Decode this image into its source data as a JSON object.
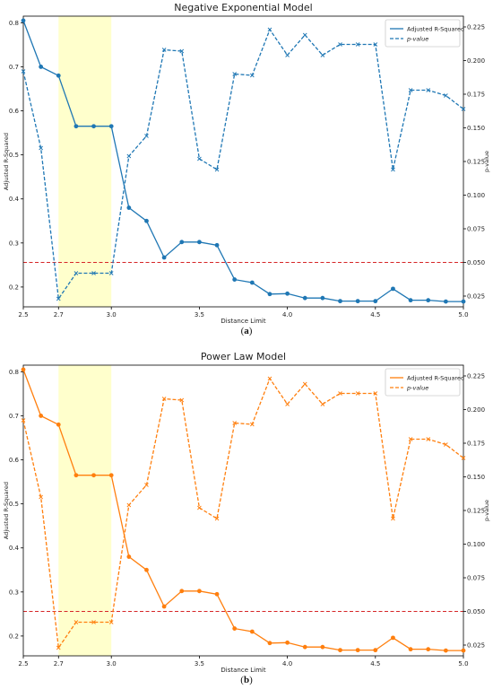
{
  "chart_data": [
    {
      "type": "line",
      "title": "Negative Exponential Model",
      "xlabel": "Distance Limit",
      "ylabel": "Adjusted R-Squared",
      "y2label": "p-value",
      "xlim": [
        2.5,
        5.0
      ],
      "ylim": [
        0.155,
        0.815
      ],
      "y2lim": [
        0.017,
        0.233
      ],
      "xticks": [
        "2.5",
        "2.7",
        "3.0",
        "3.5",
        "4.0",
        "4.5",
        "5.0"
      ],
      "yticks": [
        "0.2",
        "0.3",
        "0.4",
        "0.5",
        "0.6",
        "0.7",
        "0.8"
      ],
      "y2ticks": [
        "0.025",
        "0.050",
        "0.075",
        "0.100",
        "0.125",
        "0.150",
        "0.175",
        "0.200",
        "0.225"
      ],
      "color": "#1f77b4",
      "threshold": 0.05,
      "threshold_color": "#d62728",
      "highlight": [
        2.7,
        3.0
      ],
      "highlight_color": "#ffffcc",
      "legend": [
        "Adjusted R-Squared",
        "p-value"
      ],
      "x": [
        2.5,
        2.6,
        2.7,
        2.8,
        2.9,
        3.0,
        3.1,
        3.2,
        3.3,
        3.4,
        3.5,
        3.6,
        3.7,
        3.8,
        3.9,
        4.0,
        4.1,
        4.2,
        4.3,
        4.4,
        4.5,
        4.6,
        4.7,
        4.8,
        4.9,
        5.0
      ],
      "series": [
        {
          "name": "Adjusted R-Squared",
          "axis": "left",
          "style": "solid",
          "marker": "o",
          "values": [
            0.805,
            0.7,
            0.68,
            0.565,
            0.565,
            0.565,
            0.38,
            0.35,
            0.267,
            0.302,
            0.302,
            0.295,
            0.217,
            0.21,
            0.184,
            0.185,
            0.175,
            0.175,
            0.168,
            0.168,
            0.168,
            0.196,
            0.17,
            0.17,
            0.167,
            0.167
          ]
        },
        {
          "name": "p-value",
          "axis": "right",
          "style": "dashed",
          "marker": "x",
          "values": [
            0.192,
            0.135,
            0.023,
            0.042,
            0.042,
            0.042,
            0.129,
            0.144,
            0.208,
            0.207,
            0.127,
            0.119,
            0.19,
            0.189,
            0.223,
            0.204,
            0.219,
            0.204,
            0.212,
            0.212,
            0.212,
            0.119,
            0.178,
            0.178,
            0.174,
            0.164
          ]
        }
      ]
    },
    {
      "type": "line",
      "title": "Power Law Model",
      "xlabel": "Distance Limit",
      "ylabel": "Adjusted R-Squared",
      "y2label": "p-value",
      "xlim": [
        2.5,
        5.0
      ],
      "ylim": [
        0.155,
        0.815
      ],
      "y2lim": [
        0.017,
        0.233
      ],
      "xticks": [
        "2.5",
        "2.7",
        "3.0",
        "3.5",
        "4.0",
        "4.5",
        "5.0"
      ],
      "yticks": [
        "0.2",
        "0.3",
        "0.4",
        "0.5",
        "0.6",
        "0.7",
        "0.8"
      ],
      "y2ticks": [
        "0.025",
        "0.050",
        "0.075",
        "0.100",
        "0.125",
        "0.150",
        "0.175",
        "0.200",
        "0.225"
      ],
      "color": "#ff7f0e",
      "threshold": 0.05,
      "threshold_color": "#d62728",
      "highlight": [
        2.7,
        3.0
      ],
      "highlight_color": "#ffffcc",
      "legend": [
        "Adjusted R-Squared",
        "p-value"
      ],
      "x": [
        2.5,
        2.6,
        2.7,
        2.8,
        2.9,
        3.0,
        3.1,
        3.2,
        3.3,
        3.4,
        3.5,
        3.6,
        3.7,
        3.8,
        3.9,
        4.0,
        4.1,
        4.2,
        4.3,
        4.4,
        4.5,
        4.6,
        4.7,
        4.8,
        4.9,
        5.0
      ],
      "series": [
        {
          "name": "Adjusted R-Squared",
          "axis": "left",
          "style": "solid",
          "marker": "o",
          "values": [
            0.805,
            0.7,
            0.68,
            0.565,
            0.565,
            0.565,
            0.38,
            0.35,
            0.267,
            0.302,
            0.302,
            0.295,
            0.217,
            0.21,
            0.184,
            0.185,
            0.175,
            0.175,
            0.168,
            0.168,
            0.168,
            0.196,
            0.17,
            0.17,
            0.167,
            0.167
          ]
        },
        {
          "name": "p-value",
          "axis": "right",
          "style": "dashed",
          "marker": "x",
          "values": [
            0.192,
            0.135,
            0.023,
            0.042,
            0.042,
            0.042,
            0.129,
            0.144,
            0.208,
            0.207,
            0.127,
            0.119,
            0.19,
            0.189,
            0.223,
            0.204,
            0.219,
            0.204,
            0.212,
            0.212,
            0.212,
            0.119,
            0.178,
            0.178,
            0.174,
            0.164
          ]
        }
      ]
    }
  ],
  "captions": [
    "a",
    "b"
  ]
}
